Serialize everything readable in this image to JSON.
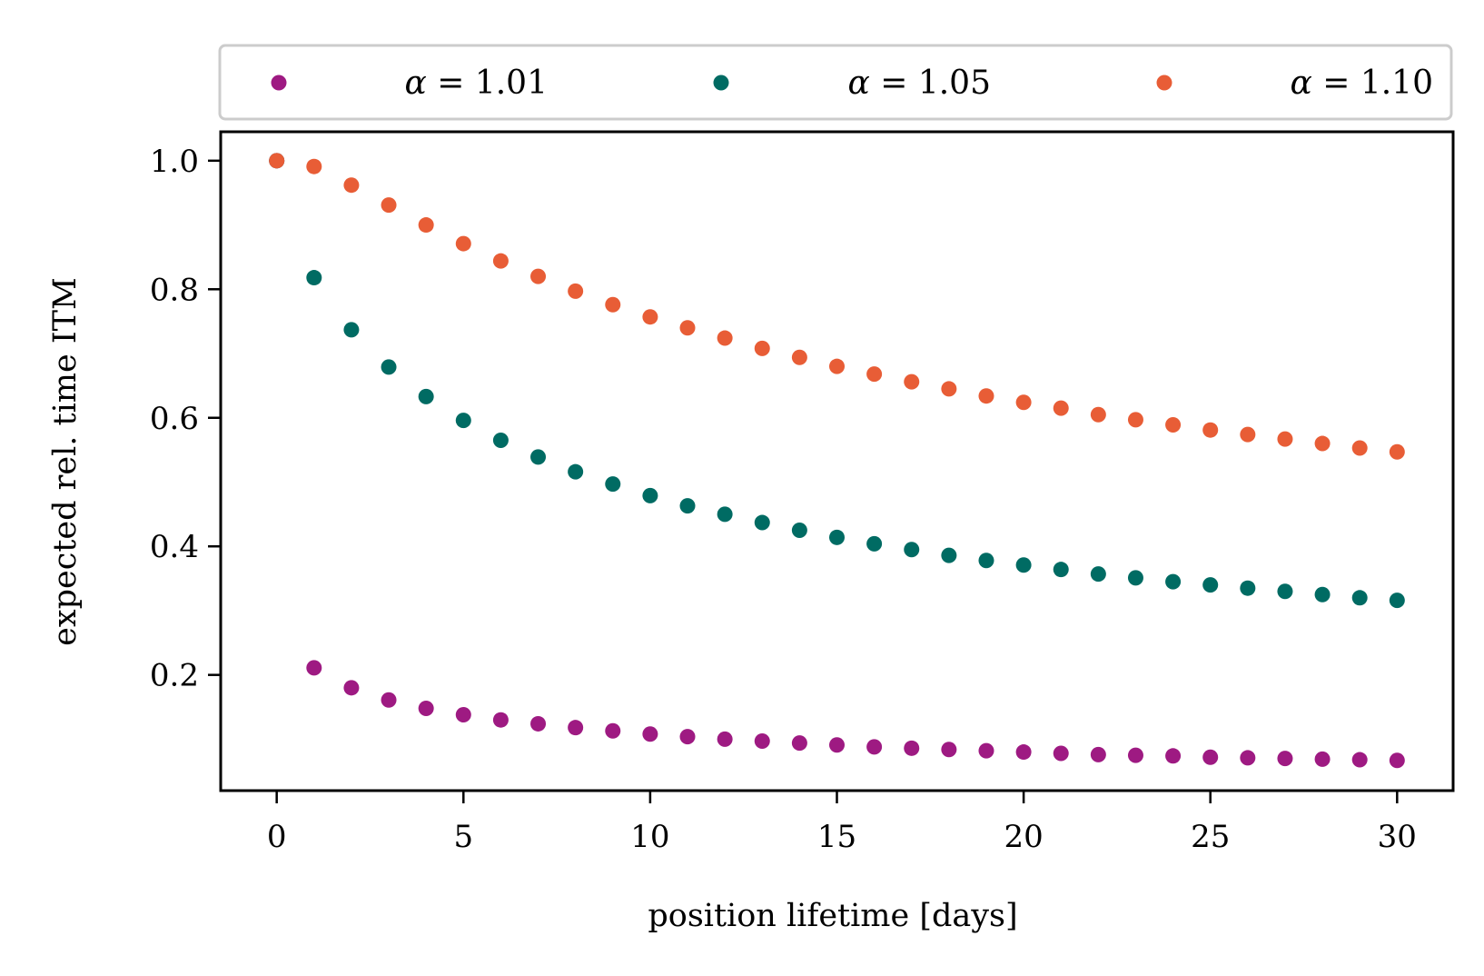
{
  "chart_data": {
    "type": "scatter",
    "title": "",
    "xlabel": "position lifetime [days]",
    "ylabel": "expected rel. time ITM",
    "xlim": [
      -1.5,
      31.5
    ],
    "ylim": [
      0.02,
      1.045
    ],
    "xticks": [
      0,
      5,
      10,
      15,
      20,
      25,
      30
    ],
    "xtick_labels": [
      "0",
      "5",
      "10",
      "15",
      "20",
      "25",
      "30"
    ],
    "yticks": [
      0.2,
      0.4,
      0.6,
      0.8,
      1.0
    ],
    "ytick_labels": [
      "0.2",
      "0.4",
      "0.6",
      "0.8",
      "1.0"
    ],
    "grid": false,
    "legend_position": "top, outside, horizontal",
    "legend_symbol": "α",
    "legend_equals": " =  ",
    "x": [
      0,
      1,
      2,
      3,
      4,
      5,
      6,
      7,
      8,
      9,
      10,
      11,
      12,
      13,
      14,
      15,
      16,
      17,
      18,
      19,
      20,
      21,
      22,
      23,
      24,
      25,
      26,
      27,
      28,
      29,
      30
    ],
    "series": [
      {
        "name": "1.01",
        "color": "#9e1a82",
        "values": [
          1.0,
          0.211,
          0.18,
          0.161,
          0.148,
          0.138,
          0.13,
          0.124,
          0.118,
          0.113,
          0.108,
          0.104,
          0.1,
          0.097,
          0.094,
          0.091,
          0.088,
          0.086,
          0.084,
          0.082,
          0.08,
          0.078,
          0.076,
          0.075,
          0.074,
          0.072,
          0.071,
          0.07,
          0.069,
          0.068,
          0.067
        ]
      },
      {
        "name": "1.05",
        "color": "#006b63",
        "values": [
          1.0,
          0.818,
          0.737,
          0.679,
          0.633,
          0.596,
          0.565,
          0.539,
          0.516,
          0.497,
          0.479,
          0.463,
          0.45,
          0.437,
          0.425,
          0.414,
          0.404,
          0.395,
          0.386,
          0.378,
          0.371,
          0.364,
          0.357,
          0.351,
          0.345,
          0.34,
          0.335,
          0.33,
          0.325,
          0.32,
          0.316
        ]
      },
      {
        "name": "1.10",
        "color": "#e85d36",
        "values": [
          1.0,
          0.991,
          0.962,
          0.931,
          0.9,
          0.871,
          0.844,
          0.82,
          0.797,
          0.776,
          0.757,
          0.74,
          0.724,
          0.708,
          0.694,
          0.68,
          0.668,
          0.656,
          0.645,
          0.634,
          0.624,
          0.615,
          0.605,
          0.597,
          0.589,
          0.581,
          0.574,
          0.567,
          0.56,
          0.553,
          0.547
        ]
      }
    ]
  }
}
